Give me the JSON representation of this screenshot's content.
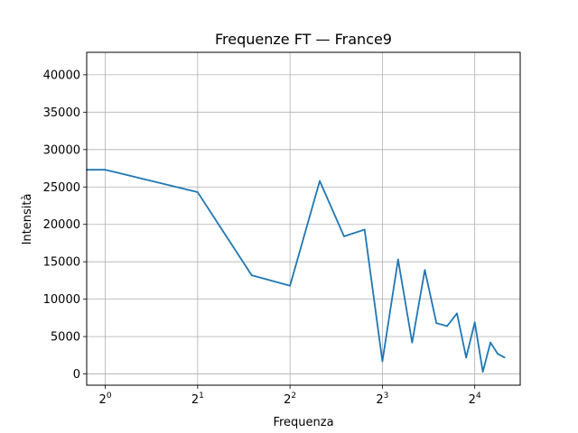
{
  "chart_data": {
    "type": "line",
    "title": "Frequenze FT — France9",
    "xlabel": "Frequenza",
    "ylabel": "Intensità",
    "x_scale": "log2",
    "xlim": [
      0.87,
      22.5
    ],
    "ylim": [
      -1500,
      43000
    ],
    "x_ticks": [
      {
        "value": 1,
        "base": "2",
        "exp": "0"
      },
      {
        "value": 2,
        "base": "2",
        "exp": "1"
      },
      {
        "value": 4,
        "base": "2",
        "exp": "2"
      },
      {
        "value": 8,
        "base": "2",
        "exp": "3"
      },
      {
        "value": 16,
        "base": "2",
        "exp": "4"
      }
    ],
    "y_ticks": [
      0,
      5000,
      10000,
      15000,
      20000,
      25000,
      30000,
      35000,
      40000
    ],
    "grid": true,
    "line_color": "#1f77b4",
    "series": [
      {
        "x": [
          0.87,
          1.0,
          2.0,
          3.0,
          4.0,
          5.0,
          6.0,
          7.0,
          8.0,
          9.0,
          10.0,
          11.0,
          12.0,
          13.0,
          14.0,
          15.0,
          16.0,
          17.0,
          18.0,
          19.0,
          20.0
        ],
        "y": [
          27300,
          27300,
          24300,
          13200,
          11800,
          25800,
          18400,
          19300,
          1700,
          15300,
          4200,
          13900,
          6800,
          6400,
          8100,
          2200,
          6900,
          300,
          4200,
          2700,
          2200
        ]
      }
    ]
  }
}
